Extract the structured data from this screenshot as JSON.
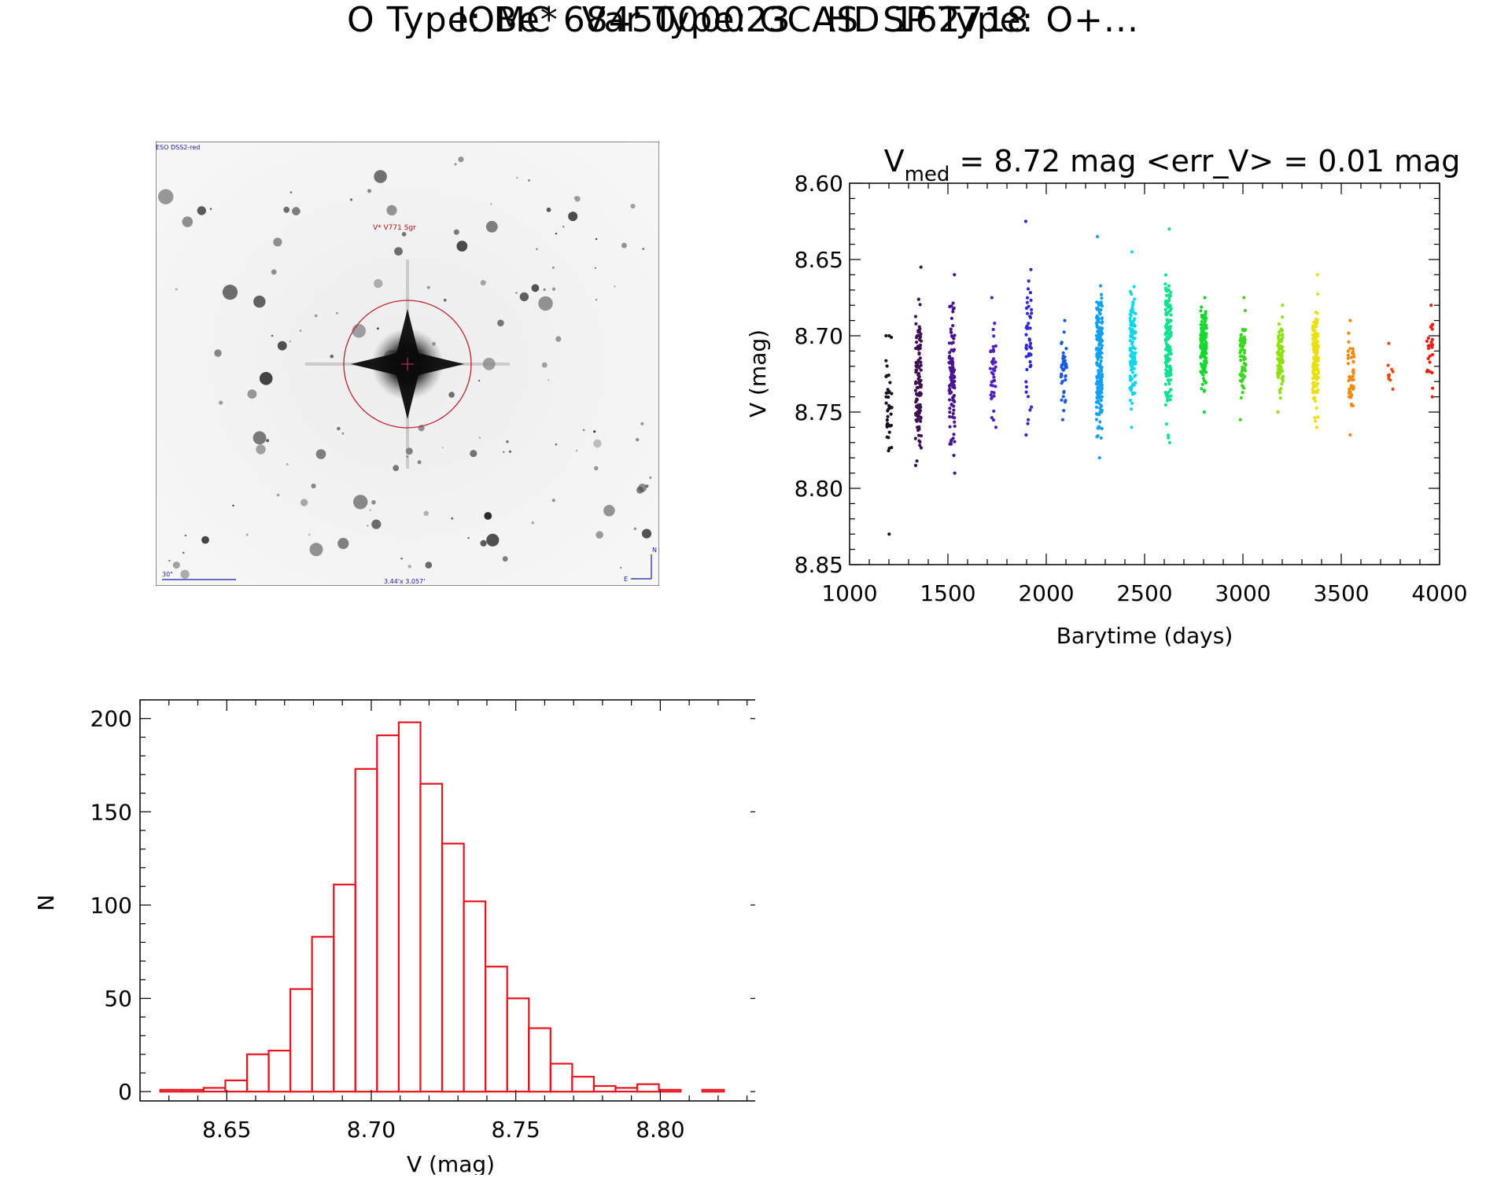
{
  "header": {
    "title": "IOMC 6845000023   HD 162718",
    "subtitle": "O Type: Be*  Var Type: GCAS  SP Type: O+..."
  },
  "finder": {
    "survey": "ESO DSS2-red",
    "target_label": "V* V771 Sgr",
    "scale_label": "30\"",
    "fov_label": "3.44'x 3.057'",
    "north": "N",
    "east": "E",
    "colors": {
      "circle": "#c0202a",
      "text_target": "#b01010",
      "text_info": "#1a1aa8"
    }
  },
  "chart_data": [
    {
      "type": "scatter",
      "title_prefix": "V",
      "title_sub": "med",
      "title_rest": " = 8.72 mag <err_V> = 0.01 mag",
      "xlabel": "Barytime (days)",
      "ylabel": "V (mag)",
      "xlim": [
        1000,
        4000
      ],
      "ylim": [
        8.85,
        8.6
      ],
      "y_inverted": true,
      "xticks": [
        "1000",
        "1500",
        "2000",
        "2500",
        "3000",
        "3500",
        "4000"
      ],
      "yticks": [
        "8.60",
        "8.65",
        "8.70",
        "8.75",
        "8.80",
        "8.85"
      ],
      "color_scale": "time (rainbow: black → purple → blue → cyan → green → yellow → orange → red)",
      "seasons": [
        {
          "x": 1200,
          "median": 8.74,
          "min": 8.7,
          "max": 8.83,
          "n": 40,
          "color": "#1a1020"
        },
        {
          "x": 1350,
          "median": 8.74,
          "min": 8.655,
          "max": 8.785,
          "n": 110,
          "color": "#3d1050"
        },
        {
          "x": 1520,
          "median": 8.73,
          "min": 8.66,
          "max": 8.79,
          "n": 100,
          "color": "#4a1490"
        },
        {
          "x": 1730,
          "median": 8.725,
          "min": 8.675,
          "max": 8.76,
          "n": 40,
          "color": "#5020c0"
        },
        {
          "x": 1910,
          "median": 8.715,
          "min": 8.625,
          "max": 8.765,
          "n": 50,
          "color": "#3028d0"
        },
        {
          "x": 2090,
          "median": 8.72,
          "min": 8.69,
          "max": 8.755,
          "n": 40,
          "color": "#1a5ae0"
        },
        {
          "x": 2270,
          "median": 8.715,
          "min": 8.635,
          "max": 8.78,
          "n": 170,
          "color": "#12a0f0"
        },
        {
          "x": 2440,
          "median": 8.71,
          "min": 8.645,
          "max": 8.76,
          "n": 110,
          "color": "#10d8e8"
        },
        {
          "x": 2620,
          "median": 8.71,
          "min": 8.63,
          "max": 8.77,
          "n": 140,
          "color": "#10e090"
        },
        {
          "x": 2800,
          "median": 8.705,
          "min": 8.675,
          "max": 8.75,
          "n": 150,
          "color": "#18d830"
        },
        {
          "x": 3000,
          "median": 8.71,
          "min": 8.675,
          "max": 8.755,
          "n": 60,
          "color": "#3ad820"
        },
        {
          "x": 3190,
          "median": 8.715,
          "min": 8.68,
          "max": 8.75,
          "n": 80,
          "color": "#90e010"
        },
        {
          "x": 3370,
          "median": 8.72,
          "min": 8.66,
          "max": 8.76,
          "n": 130,
          "color": "#e8e010"
        },
        {
          "x": 3550,
          "median": 8.725,
          "min": 8.69,
          "max": 8.765,
          "n": 50,
          "color": "#f08a10"
        },
        {
          "x": 3750,
          "median": 8.725,
          "min": 8.705,
          "max": 8.735,
          "n": 10,
          "color": "#f04a10"
        },
        {
          "x": 3950,
          "median": 8.71,
          "min": 8.68,
          "max": 8.74,
          "n": 25,
          "color": "#e82010"
        }
      ]
    },
    {
      "type": "bar",
      "subtype": "histogram",
      "xlabel": "V (mag)",
      "ylabel": "N",
      "xlim": [
        8.62,
        8.835
      ],
      "ylim": [
        -5,
        210
      ],
      "xticks": [
        "8.65",
        "8.70",
        "8.75",
        "8.80"
      ],
      "yticks": [
        "0",
        "50",
        "100",
        "150",
        "200"
      ],
      "bin_width": 0.0075,
      "bin_start": 8.627,
      "values": [
        1,
        1,
        2,
        6,
        20,
        22,
        55,
        83,
        111,
        173,
        191,
        198,
        165,
        133,
        102,
        67,
        50,
        34,
        15,
        8,
        3,
        2,
        4,
        1,
        0,
        1
      ],
      "color": "#e8141e"
    }
  ]
}
